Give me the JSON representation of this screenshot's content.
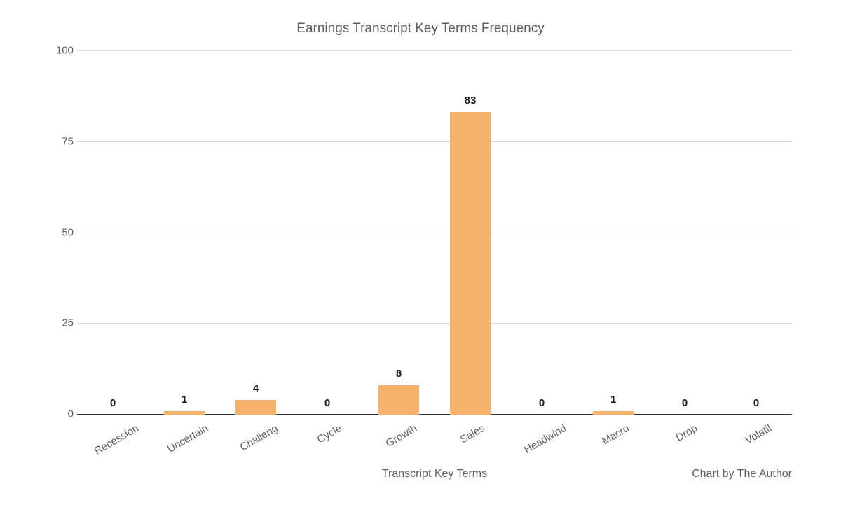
{
  "chart": {
    "type": "bar",
    "title": "Earnings Transcript Key Terms Frequency",
    "title_fontsize": 19,
    "title_color": "#5f5f5f",
    "xaxis_title": "Transcript Key Terms",
    "credit": "Chart by The Author",
    "background_color": "#ffffff",
    "grid_color": "#d9d9d9",
    "axis_line_color": "#333333",
    "label_color": "#5f5f5f",
    "data_label_color": "#1a1a1a",
    "data_label_fontweight": 700,
    "data_label_fontsize": 15,
    "ytick_fontsize": 15,
    "xtick_fontsize": 15,
    "xtick_rotation_deg": -30,
    "axis_title_fontsize": 16,
    "bar_color": "#f6b26b",
    "bar_width_ratio": 0.56,
    "ylim": [
      0,
      100
    ],
    "yticks": [
      0,
      25,
      50,
      75,
      100
    ],
    "categories": [
      "Recession",
      "Uncertain",
      "Challeng",
      "Cycle",
      "Growth",
      "Sales",
      "Headwind",
      "Macro",
      "Drop",
      "Volatil"
    ],
    "values": [
      0,
      1,
      4,
      0,
      8,
      83,
      0,
      1,
      0,
      0
    ]
  }
}
